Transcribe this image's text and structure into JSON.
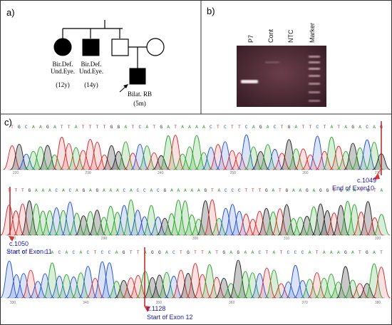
{
  "panel_a": {
    "label": "a)",
    "persons": [
      {
        "id": "p1",
        "sex": "female",
        "affected": true,
        "line1": "Bir.Def.",
        "line2": "Und.Eye.",
        "age": "(12y)"
      },
      {
        "id": "p2",
        "sex": "male",
        "affected": true,
        "line1": "Bir.Def.",
        "line2": "Und.Eye.",
        "age": "(14y)"
      },
      {
        "id": "p3",
        "sex": "male",
        "affected": false
      },
      {
        "id": "p4",
        "sex": "female",
        "affected": false
      },
      {
        "id": "p5",
        "sex": "male",
        "affected": true,
        "proband": true,
        "line1": "Bilat. RB",
        "age": "(5m)"
      }
    ]
  },
  "panel_b": {
    "label": "b)",
    "lanes": [
      "P7",
      "Cont",
      "NTC",
      "Marker"
    ]
  },
  "panel_c": {
    "label": "c)",
    "rows": [
      {
        "sequence": "TGCAAGATTATTTTGGATCATGATAAAACTCTTCAGACTGATTCTATAGACAG",
        "ticks": [
          "220",
          "230",
          "240",
          "250",
          "260",
          "270"
        ],
        "annotation": {
          "pos": "c.1049",
          "text": "End of Exon10"
        }
      },
      {
        "sequence": "TTTGAAACACAGAGAAACACCACGAAAAAGTACCCTTTGATGAAGAGGTGAATGTA",
        "ticks": [
          "280",
          "290",
          "300",
          "310",
          "320"
        ],
        "annotation": {
          "pos": "c.1050",
          "text": "Start of Exon 11"
        }
      },
      {
        "sequence": "CCCTCCACACACTCCAGTTAGGACTGTTATGAGAACTATCCCATAAAGATGAT",
        "ticks": [
          "330",
          "340",
          "350",
          "360",
          "370",
          "380"
        ],
        "annotation": {
          "pos": "c.1128",
          "text": "Start of Exon 12"
        }
      }
    ],
    "base_colors": {
      "A": "#2ca02c",
      "C": "#1f4fcc",
      "G": "#222222",
      "T": "#d62728"
    }
  }
}
